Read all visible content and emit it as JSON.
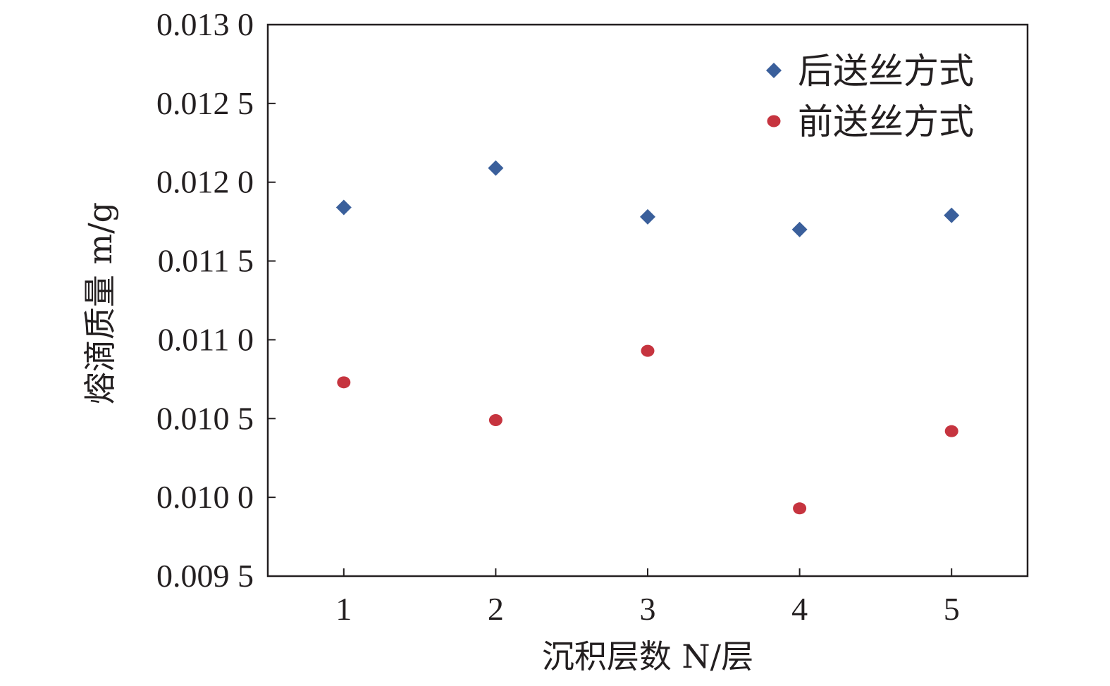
{
  "chart_data": {
    "type": "scatter",
    "title": "",
    "xlabel": "沉积层数 N/层",
    "ylabel": "熔滴质量 m/g",
    "x_ticks": [
      "1",
      "2",
      "3",
      "4",
      "5"
    ],
    "y_ticks": [
      "0.009 5",
      "0.010 0",
      "0.010 5",
      "0.011 0",
      "0.011 5",
      "0.012 0",
      "0.012 5",
      "0.013 0"
    ],
    "xlim": [
      0.5,
      5.5
    ],
    "ylim": [
      0.0095,
      0.013
    ],
    "grid": false,
    "legend_position": "top-right",
    "series": [
      {
        "name": "后送丝方式",
        "marker": "diamond",
        "color": "#3a5f9b",
        "x": [
          1,
          2,
          3,
          4,
          5
        ],
        "y": [
          0.01184,
          0.01209,
          0.01178,
          0.0117,
          0.01179
        ]
      },
      {
        "name": "前送丝方式",
        "marker": "circle",
        "color": "#c6343f",
        "x": [
          1,
          2,
          3,
          4,
          5
        ],
        "y": [
          0.01073,
          0.01049,
          0.01093,
          0.00993,
          0.01042
        ]
      }
    ]
  }
}
